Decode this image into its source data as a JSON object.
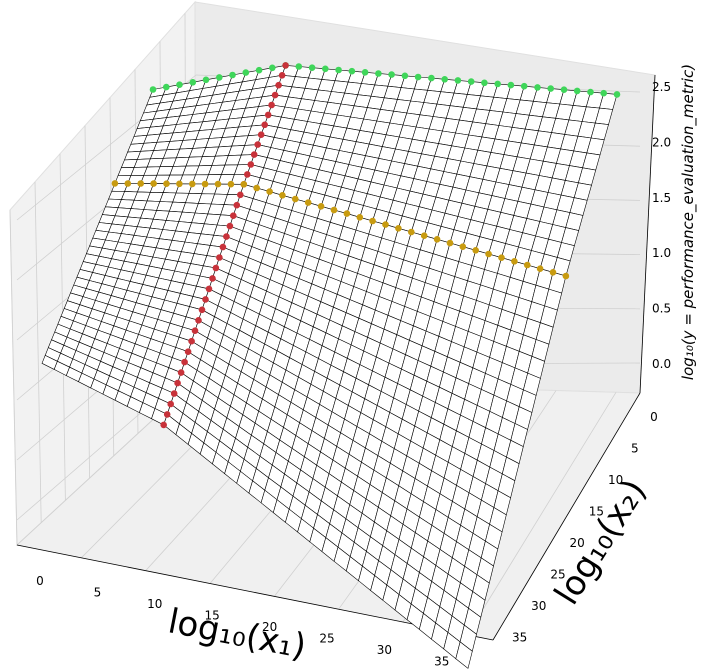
{
  "chart_data": {
    "type": "surface",
    "title": "",
    "xlabel": "log₁₀(x₁)",
    "ylabel": "log₁₀(x₂)",
    "zlabel": "log₁₀(y = performance_evaluation_metric)",
    "x_ticks": [
      "0",
      "5",
      "10",
      "15",
      "20",
      "25",
      "30",
      "35"
    ],
    "y_ticks": [
      "0",
      "5",
      "10",
      "15",
      "20",
      "25",
      "30",
      "35"
    ],
    "z_ticks": [
      "0.0",
      "0.5",
      "1.0",
      "1.5",
      "2.0",
      "2.5"
    ],
    "xlim": [
      0,
      36
    ],
    "ylim": [
      0,
      36
    ],
    "zlim": [
      -0.1,
      2.6
    ],
    "grid": true,
    "surface": {
      "description": "log10(y) surface over a 36x36 grid of (log10 x1, log10 x2); piecewise with a ridge along x1≈10 and a valley along x2≈12",
      "corner_values": {
        "x0_y0": 2.1,
        "x35_y0": 2.55,
        "x0_y35": 0.5,
        "x35_y35": -0.1
      },
      "mesh_color": "#000000",
      "face_color": "#ffffff"
    },
    "series": [
      {
        "color": "#3fd65a",
        "marker": "o",
        "fixed_axis": "x2",
        "fixed_value": 0,
        "range": [
          0,
          35
        ]
      },
      {
        "color": "#c8323a",
        "marker": "o",
        "fixed_axis": "x1",
        "fixed_value": 10,
        "range": [
          0,
          35
        ]
      },
      {
        "color": "#c89b10",
        "marker": "o",
        "fixed_axis": "x2",
        "fixed_value": 12,
        "range": [
          0,
          35
        ]
      }
    ]
  }
}
